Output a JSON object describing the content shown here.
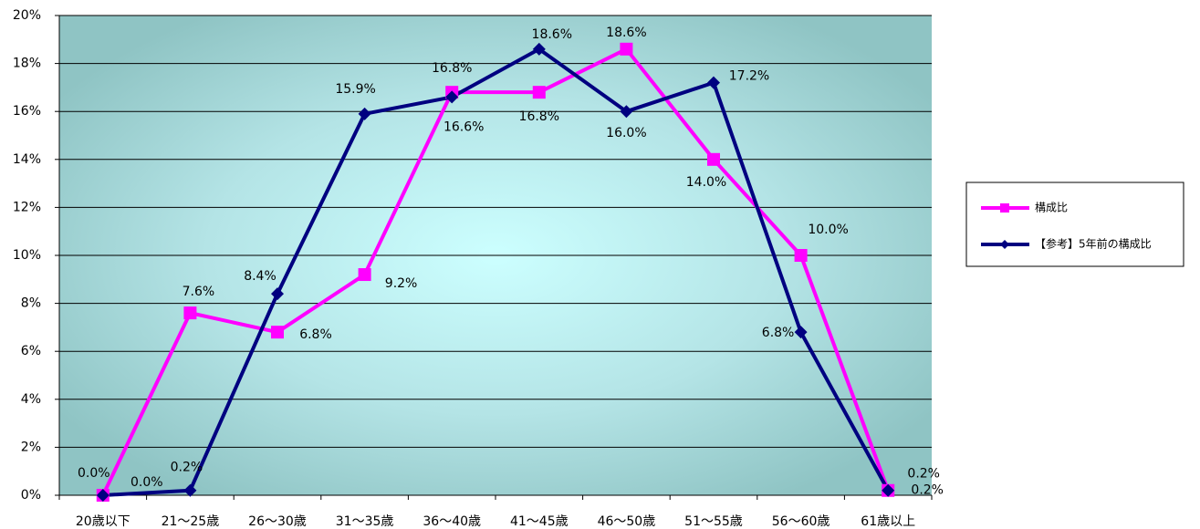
{
  "chart_data": {
    "type": "line",
    "categories": [
      "20歳以下",
      "21〜25歳",
      "26〜30歳",
      "31〜35歳",
      "36〜40歳",
      "41〜45歳",
      "46〜50歳",
      "51〜55歳",
      "56〜60歳",
      "61歳以上"
    ],
    "series": [
      {
        "name": "構成比",
        "color": "#ff00ff",
        "marker": "square",
        "values": [
          0.0,
          7.6,
          6.8,
          9.2,
          16.8,
          16.8,
          18.6,
          14.0,
          10.0,
          0.2
        ],
        "value_labels": [
          "0.0%",
          "7.6%",
          "6.8%",
          "9.2%",
          "16.8%",
          "16.8%",
          "18.6%",
          "14.0%",
          "10.0%",
          "0.2%"
        ]
      },
      {
        "name": "【参考】5年前の構成比",
        "color": "#000080",
        "marker": "diamond",
        "values": [
          0.0,
          0.2,
          8.4,
          15.9,
          16.6,
          18.6,
          16.0,
          17.2,
          6.8,
          0.2
        ],
        "value_labels": [
          "0.0%",
          "0.2%",
          "8.4%",
          "15.9%",
          "16.6%",
          "18.6%",
          "16.0%",
          "17.2%",
          "6.8%",
          "0.2%"
        ]
      }
    ],
    "ylim": [
      0,
      20
    ],
    "yticks": [
      {
        "value": 0,
        "label": "0%"
      },
      {
        "value": 2,
        "label": "2%"
      },
      {
        "value": 4,
        "label": "4%"
      },
      {
        "value": 6,
        "label": "6%"
      },
      {
        "value": 8,
        "label": "8%"
      },
      {
        "value": 10,
        "label": "10%"
      },
      {
        "value": 12,
        "label": "12%"
      },
      {
        "value": 14,
        "label": "14%"
      },
      {
        "value": 16,
        "label": "16%"
      },
      {
        "value": 18,
        "label": "18%"
      },
      {
        "value": 20,
        "label": "20%"
      }
    ],
    "grid": true,
    "legend": "right"
  }
}
